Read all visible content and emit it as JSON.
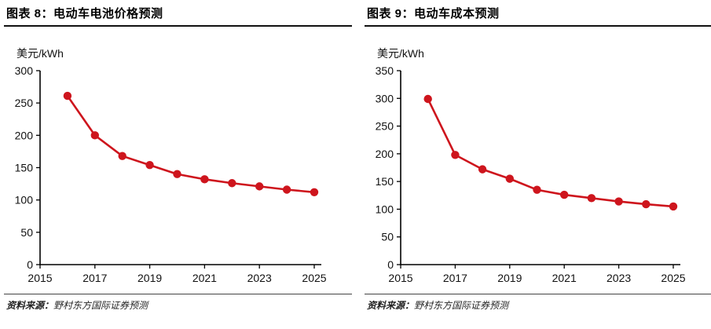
{
  "colors": {
    "accent_red": "#CE151D",
    "axis_black": "#000000",
    "text_black": "#111111"
  },
  "panels": [
    {
      "title": "图表 8：电动车电池价格预测",
      "unit_label": "美元/kWh",
      "source_label": "资料来源：",
      "source_text": "野村东方国际证券预测"
    },
    {
      "title": "图表 9：电动车成本预测",
      "unit_label": "美元/kWh",
      "source_label": "资料来源：",
      "source_text": "野村东方国际证券预测"
    }
  ],
  "chart_data": [
    {
      "type": "line",
      "title": "电动车电池价格预测",
      "ylabel": "美元/kWh",
      "xlabel": "",
      "x": [
        2016,
        2017,
        2018,
        2019,
        2020,
        2021,
        2022,
        2023,
        2024,
        2025
      ],
      "values": [
        261,
        200,
        168,
        154,
        140,
        132,
        126,
        121,
        116,
        112
      ],
      "xlim": [
        2015,
        2025
      ],
      "ylim": [
        0,
        300
      ],
      "yticks": [
        0,
        50,
        100,
        150,
        200,
        250,
        300
      ],
      "xticks": [
        2015,
        2017,
        2019,
        2021,
        2023,
        2025
      ],
      "grid": false,
      "legend": "none",
      "line_color": "#CE151D",
      "marker": "circle"
    },
    {
      "type": "line",
      "title": "电动车成本预测",
      "ylabel": "美元/kWh",
      "xlabel": "",
      "x": [
        2016,
        2017,
        2018,
        2019,
        2020,
        2021,
        2022,
        2023,
        2024,
        2025
      ],
      "values": [
        299,
        198,
        172,
        155,
        135,
        126,
        120,
        114,
        109,
        105
      ],
      "xlim": [
        2015,
        2025
      ],
      "ylim": [
        0,
        350
      ],
      "yticks": [
        0,
        50,
        100,
        150,
        200,
        250,
        300,
        350
      ],
      "xticks": [
        2015,
        2017,
        2019,
        2021,
        2023,
        2025
      ],
      "grid": false,
      "legend": "none",
      "line_color": "#CE151D",
      "marker": "circle"
    }
  ]
}
